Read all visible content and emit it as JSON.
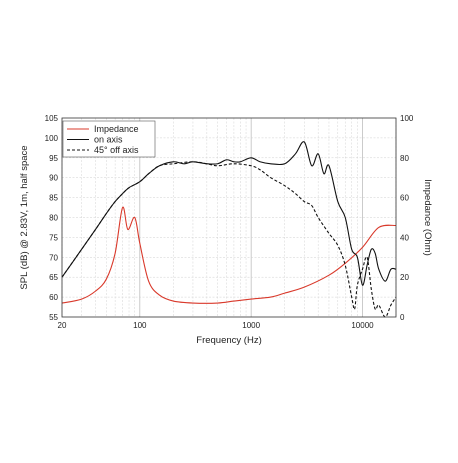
{
  "chart_data": {
    "type": "line",
    "xlabel": "Frequency (Hz)",
    "ylabel_left": "SPL (dB) @ 2.83V, 1m, half space",
    "ylabel_right": "Impedance (Ohm)",
    "x_scale": "log",
    "xlim": [
      20,
      20000
    ],
    "ylim_left": [
      55,
      105
    ],
    "ylim_right": [
      0,
      100
    ],
    "x_tick_labels": [
      "20",
      "100",
      "1000",
      "10000"
    ],
    "x_tick_values": [
      20,
      100,
      1000,
      10000
    ],
    "y_left_ticks": [
      55,
      60,
      65,
      70,
      75,
      80,
      85,
      90,
      95,
      100,
      105
    ],
    "y_right_ticks": [
      0,
      20,
      40,
      60,
      80,
      100
    ],
    "grid": true,
    "legend_position": "top-left",
    "series": [
      {
        "name": "Impedance",
        "axis": "right",
        "color": "#d9392b",
        "dash": "solid",
        "points": [
          [
            20,
            7
          ],
          [
            30,
            9
          ],
          [
            40,
            13
          ],
          [
            50,
            19
          ],
          [
            60,
            32
          ],
          [
            70,
            55
          ],
          [
            78,
            44
          ],
          [
            90,
            50
          ],
          [
            100,
            37
          ],
          [
            120,
            18
          ],
          [
            150,
            11
          ],
          [
            200,
            8
          ],
          [
            300,
            7
          ],
          [
            500,
            7
          ],
          [
            700,
            8
          ],
          [
            1000,
            9
          ],
          [
            1500,
            10
          ],
          [
            2000,
            12
          ],
          [
            3000,
            15
          ],
          [
            5000,
            21
          ],
          [
            7000,
            27
          ],
          [
            10000,
            35
          ],
          [
            14000,
            45
          ],
          [
            20000,
            46
          ]
        ]
      },
      {
        "name": "on axis",
        "axis": "left",
        "color": "#111111",
        "dash": "solid",
        "points": [
          [
            20,
            65
          ],
          [
            30,
            72
          ],
          [
            40,
            77
          ],
          [
            50,
            81
          ],
          [
            60,
            84
          ],
          [
            70,
            86
          ],
          [
            80,
            87.5
          ],
          [
            100,
            89
          ],
          [
            120,
            91
          ],
          [
            150,
            93
          ],
          [
            200,
            94
          ],
          [
            250,
            93.5
          ],
          [
            300,
            94
          ],
          [
            400,
            93.5
          ],
          [
            500,
            93.5
          ],
          [
            600,
            94.5
          ],
          [
            700,
            94
          ],
          [
            800,
            94
          ],
          [
            1000,
            95
          ],
          [
            1200,
            94
          ],
          [
            1500,
            93.5
          ],
          [
            2000,
            93.5
          ],
          [
            2500,
            96
          ],
          [
            3000,
            99
          ],
          [
            3500,
            93
          ],
          [
            4000,
            96
          ],
          [
            4500,
            91
          ],
          [
            5000,
            93
          ],
          [
            6000,
            84
          ],
          [
            7000,
            80
          ],
          [
            8000,
            72
          ],
          [
            9000,
            70
          ],
          [
            10000,
            63
          ],
          [
            11000,
            68
          ],
          [
            12000,
            72
          ],
          [
            13000,
            71
          ],
          [
            14000,
            67
          ],
          [
            16000,
            64
          ],
          [
            18000,
            67
          ],
          [
            20000,
            67
          ]
        ]
      },
      {
        "name": "45° off axis",
        "axis": "left",
        "color": "#111111",
        "dash": "dashed",
        "points": [
          [
            20,
            65
          ],
          [
            30,
            72
          ],
          [
            40,
            77
          ],
          [
            50,
            81
          ],
          [
            60,
            84
          ],
          [
            70,
            86
          ],
          [
            80,
            87.5
          ],
          [
            100,
            89
          ],
          [
            120,
            91
          ],
          [
            150,
            93
          ],
          [
            200,
            93.5
          ],
          [
            300,
            94
          ],
          [
            400,
            93.5
          ],
          [
            500,
            93
          ],
          [
            700,
            93.5
          ],
          [
            1000,
            93
          ],
          [
            1200,
            92
          ],
          [
            1500,
            90
          ],
          [
            2000,
            88
          ],
          [
            2500,
            86
          ],
          [
            3000,
            84
          ],
          [
            3500,
            83
          ],
          [
            4000,
            80
          ],
          [
            5000,
            76
          ],
          [
            6000,
            73
          ],
          [
            7000,
            68
          ],
          [
            8000,
            60
          ],
          [
            8500,
            57
          ],
          [
            9000,
            63
          ],
          [
            10000,
            67
          ],
          [
            11000,
            70
          ],
          [
            12000,
            62
          ],
          [
            13000,
            57
          ],
          [
            14000,
            58
          ],
          [
            16000,
            55
          ],
          [
            18000,
            58
          ],
          [
            20000,
            60
          ]
        ]
      }
    ]
  }
}
